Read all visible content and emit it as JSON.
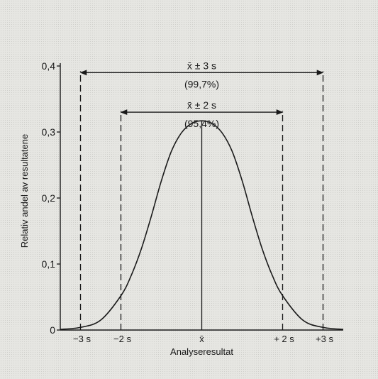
{
  "chart_data": {
    "type": "line",
    "xlabel": "Analyseresultat",
    "ylabel": "Relativ andel av resultatene",
    "ylim": [
      0,
      0.4
    ],
    "xlim": [
      -3.5,
      3.5
    ],
    "y_ticks": [
      0,
      0.1,
      0.2,
      0.3,
      0.4
    ],
    "y_tick_labels": [
      "0",
      "0,1",
      "0,2",
      "0,3",
      "0,4"
    ],
    "x_ticks": [
      -3,
      -2,
      0,
      2,
      3
    ],
    "x_tick_labels": [
      "−3 s",
      "−2 s",
      "x̄",
      "+ 2 s",
      "+3 s"
    ],
    "series": [
      {
        "x": [
          -3.5,
          -3.0,
          -2.5,
          -2.0,
          -1.75,
          -1.5,
          -1.25,
          -1.0,
          -0.75,
          -0.5,
          -0.25,
          0,
          0.25,
          0.5,
          0.75,
          1.0,
          1.25,
          1.5,
          1.75,
          2.0,
          2.5,
          3.0,
          3.5
        ],
        "y": [
          0.001,
          0.004,
          0.015,
          0.052,
          0.082,
          0.122,
          0.172,
          0.226,
          0.271,
          0.299,
          0.313,
          0.317,
          0.313,
          0.299,
          0.271,
          0.226,
          0.172,
          0.122,
          0.082,
          0.052,
          0.015,
          0.004,
          0.001
        ]
      }
    ],
    "annotations": [
      {
        "id": "three_sigma",
        "label": "x̄ ± 3 s",
        "percent": "(99,7%)",
        "x_from": -3,
        "x_to": 3,
        "y": 0.39
      },
      {
        "id": "two_sigma",
        "label": "x̄ ± 2 s",
        "percent": "(95,4%)",
        "x_from": -2,
        "x_to": 2,
        "y": 0.33
      }
    ],
    "mean_line_x": 0,
    "grid": false
  }
}
